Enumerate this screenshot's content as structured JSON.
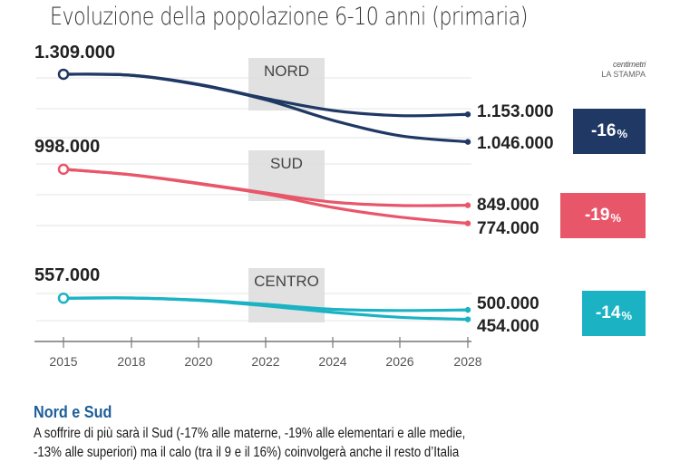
{
  "title": "Evoluzione della popolazione 6-10 anni (primaria)",
  "logo": {
    "line1": "centimetri",
    "line2": "LA STAMPA"
  },
  "chart_data": {
    "type": "line",
    "title": "Evoluzione della popolazione 6-10 anni (primaria)",
    "x_ticks": [
      "2015",
      "2018",
      "2020",
      "2022",
      "2024",
      "2026",
      "2028"
    ],
    "xlim": [
      2015,
      2028
    ],
    "grid": true,
    "panels": [
      {
        "name": "NORD",
        "color": "#1f3864",
        "start_label": "1.309.000",
        "change_label": "-16",
        "series": [
          {
            "name": "upper",
            "end_label": "1.153.000",
            "points": [
              [
                2015,
                1309000
              ],
              [
                2018,
                1305000
              ],
              [
                2020,
                1270000
              ],
              [
                2022,
                1215000
              ],
              [
                2024,
                1168000
              ],
              [
                2026,
                1148000
              ],
              [
                2028,
                1153000
              ]
            ]
          },
          {
            "name": "lower",
            "end_label": "1.046.000",
            "points": [
              [
                2015,
                1309000
              ],
              [
                2018,
                1305000
              ],
              [
                2020,
                1268000
              ],
              [
                2022,
                1210000
              ],
              [
                2024,
                1130000
              ],
              [
                2026,
                1070000
              ],
              [
                2028,
                1046000
              ]
            ]
          }
        ],
        "ylim": [
          1020000,
          1330000
        ]
      },
      {
        "name": "SUD",
        "color": "#e8566a",
        "start_label": "998.000",
        "change_label": "-19",
        "series": [
          {
            "name": "upper",
            "end_label": "849.000",
            "points": [
              [
                2015,
                998000
              ],
              [
                2018,
                975000
              ],
              [
                2020,
                940000
              ],
              [
                2022,
                900000
              ],
              [
                2024,
                862000
              ],
              [
                2026,
                848000
              ],
              [
                2028,
                849000
              ]
            ]
          },
          {
            "name": "lower",
            "end_label": "774.000",
            "points": [
              [
                2015,
                998000
              ],
              [
                2018,
                975000
              ],
              [
                2020,
                938000
              ],
              [
                2022,
                896000
              ],
              [
                2024,
                840000
              ],
              [
                2026,
                800000
              ],
              [
                2028,
                774000
              ]
            ]
          }
        ],
        "ylim": [
          750000,
          1020000
        ]
      },
      {
        "name": "CENTRO",
        "color": "#1bb3c4",
        "start_label": "557.000",
        "change_label": "-14",
        "series": [
          {
            "name": "upper",
            "end_label": "500.000",
            "points": [
              [
                2015,
                557000
              ],
              [
                2018,
                558000
              ],
              [
                2020,
                548000
              ],
              [
                2022,
                527000
              ],
              [
                2024,
                503000
              ],
              [
                2026,
                497000
              ],
              [
                2028,
                500000
              ]
            ]
          },
          {
            "name": "lower",
            "end_label": "454.000",
            "points": [
              [
                2015,
                557000
              ],
              [
                2018,
                558000
              ],
              [
                2020,
                546000
              ],
              [
                2022,
                520000
              ],
              [
                2024,
                488000
              ],
              [
                2026,
                464000
              ],
              [
                2028,
                454000
              ]
            ]
          }
        ],
        "ylim": [
          430000,
          580000
        ]
      }
    ]
  },
  "footer": {
    "heading": "Nord e Sud",
    "line1": "A soffrire di più sarà il Sud (-17% alle materne, -19% alle elementari e alle medie,",
    "line2": "-13% alle superiori) ma il calo (tra il 9 e il 16%) coinvolgerà anche il resto d’Italia"
  }
}
